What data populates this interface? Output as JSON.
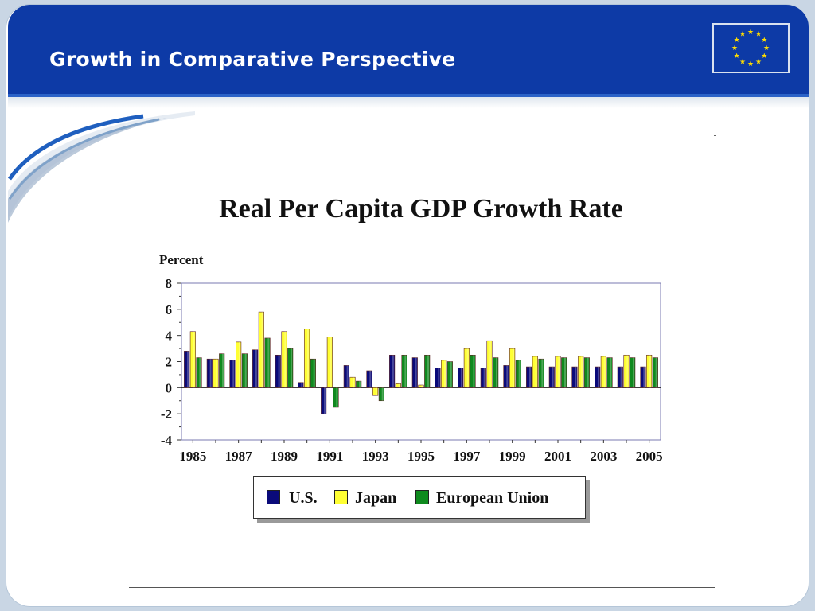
{
  "slide": {
    "title": "Growth in Comparative Perspective",
    "header_color": "#0d3aa6",
    "flag_icon": "eu-flag-icon"
  },
  "chart_data": {
    "type": "bar",
    "title": "Real Per Capita GDP Growth Rate",
    "ylabel": "Percent",
    "xlabel": "",
    "ylim": [
      -4,
      8
    ],
    "yticks": [
      "8",
      "6",
      "4",
      "2",
      "0",
      "-2",
      "-4"
    ],
    "xtick_labels": [
      "1985",
      "1987",
      "1989",
      "1991",
      "1993",
      "1995",
      "1997",
      "1999",
      "2001",
      "2003",
      "2005"
    ],
    "categories": [
      "1985",
      "1986",
      "1987",
      "1988",
      "1989",
      "1990",
      "1991",
      "1992",
      "1993",
      "1994",
      "1995",
      "1996",
      "1997",
      "1998",
      "1999",
      "2000",
      "2001",
      "2002",
      "2003",
      "2004",
      "2005"
    ],
    "series": [
      {
        "name": "U.S.",
        "color": "#0a0a7a",
        "values": [
          2.8,
          2.2,
          2.1,
          2.9,
          2.5,
          0.4,
          -2.0,
          1.7,
          1.3,
          2.5,
          2.3,
          1.5,
          1.5,
          1.5,
          1.7,
          1.6,
          1.6,
          1.6,
          1.6,
          1.6,
          1.6
        ]
      },
      {
        "name": "Japan",
        "color": "#ffff33",
        "values": [
          4.3,
          2.2,
          3.5,
          5.8,
          4.3,
          4.5,
          3.9,
          0.8,
          -0.6,
          0.3,
          0.2,
          2.1,
          3.0,
          3.6,
          3.0,
          2.4,
          2.4,
          2.4,
          2.4,
          2.5,
          2.5
        ]
      },
      {
        "name": "European Union",
        "color": "#0f8a1e",
        "values": [
          2.3,
          2.6,
          2.6,
          3.8,
          3.0,
          2.2,
          -1.5,
          0.5,
          -1.0,
          2.5,
          2.5,
          2.0,
          2.5,
          2.3,
          2.1,
          2.2,
          2.3,
          2.3,
          2.3,
          2.3,
          2.3
        ]
      }
    ],
    "grid": false,
    "legend_position": "bottom"
  }
}
